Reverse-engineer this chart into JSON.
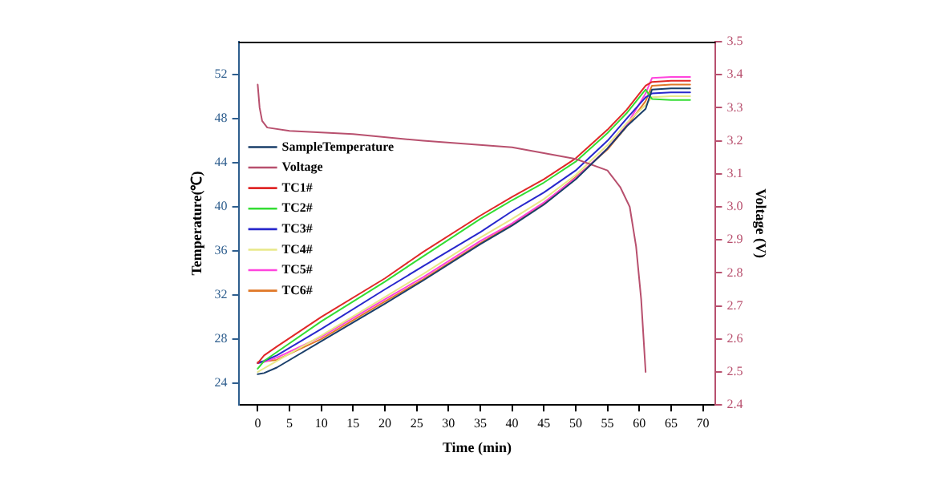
{
  "chart_data": {
    "type": "line",
    "xlabel": "Time (min)",
    "ylabel": "Temperature(℃)",
    "y2label": "Voltage (V)",
    "xlim": [
      -3,
      72
    ],
    "xticks": [
      0,
      5,
      10,
      15,
      20,
      25,
      30,
      35,
      40,
      45,
      50,
      55,
      60,
      65,
      70
    ],
    "ylim": [
      22,
      55
    ],
    "yticks": [
      24,
      28,
      32,
      36,
      40,
      44,
      48,
      52
    ],
    "y2lim": [
      2.4,
      3.5
    ],
    "y2ticks": [
      2.4,
      2.5,
      2.6,
      2.7,
      2.8,
      2.9,
      {
        "value": 3,
        "label": "3.0"
      },
      3.1,
      3.2,
      3.3,
      3.4,
      3.5
    ],
    "grid": false,
    "legend": "left",
    "marker": "none",
    "line_style": "solid",
    "series": [
      {
        "name": "SampleTemperature",
        "color": "#1a3f6a",
        "x": [
          0,
          1,
          3,
          10,
          20,
          26,
          35,
          40,
          45,
          50,
          55,
          58,
          61,
          62,
          65,
          68
        ],
        "values": [
          24.8,
          24.9,
          25.4,
          27.8,
          31.2,
          33.3,
          36.6,
          38.3,
          40.2,
          42.5,
          45.3,
          47.3,
          48.9,
          50.65,
          50.75,
          50.75
        ]
      },
      {
        "name": "Voltage",
        "color": "#b8506e",
        "axis": "y2",
        "x": [
          0,
          0.3,
          0.7,
          1.5,
          5,
          15,
          26,
          40,
          50,
          55,
          57,
          58.5,
          59.5,
          60.3,
          61
        ],
        "values": [
          3.37,
          3.3,
          3.26,
          3.24,
          3.23,
          3.22,
          3.2,
          3.18,
          3.145,
          3.11,
          3.06,
          3.0,
          2.88,
          2.72,
          2.5
        ]
      },
      {
        "name": "TC1#",
        "color": "#e02828",
        "x": [
          0,
          1,
          3,
          10,
          20,
          26,
          35,
          40,
          45,
          50,
          55,
          58,
          61,
          62,
          65,
          68
        ],
        "values": [
          25.8,
          26.5,
          27.3,
          30,
          33.5,
          35.9,
          39.2,
          40.9,
          42.5,
          44.4,
          47,
          48.8,
          51,
          51.35,
          51.45,
          51.45
        ]
      },
      {
        "name": "TC2#",
        "color": "#33dd33",
        "x": [
          0,
          1,
          3,
          10,
          20,
          26,
          35,
          40,
          45,
          50,
          55,
          58,
          61,
          62,
          65,
          68
        ],
        "values": [
          25.3,
          26,
          26.8,
          29.6,
          33.2,
          35.5,
          38.9,
          40.6,
          42.2,
          44.1,
          46.7,
          48.5,
          50.65,
          49.8,
          49.7,
          49.7
        ]
      },
      {
        "name": "TC3#",
        "color": "#2828cc",
        "x": [
          0,
          1,
          3,
          10,
          20,
          26,
          35,
          40,
          45,
          50,
          55,
          58,
          61,
          62,
          65,
          68
        ],
        "values": [
          25.8,
          26,
          26.5,
          28.9,
          32.5,
          34.6,
          37.7,
          39.6,
          41.3,
          43.3,
          46,
          48,
          49.95,
          50.3,
          50.4,
          50.4
        ]
      },
      {
        "name": "TC4#",
        "color": "#e8e888",
        "x": [
          0,
          3,
          10,
          20,
          26,
          35,
          40,
          45,
          50,
          55,
          58,
          61,
          62,
          65,
          68
        ],
        "values": [
          25,
          26,
          28.3,
          31.8,
          33.9,
          37.2,
          38.9,
          40.7,
          42.9,
          45.6,
          47.6,
          49.25,
          49.95,
          50.05,
          50.05
        ]
      },
      {
        "name": "TC5#",
        "color": "#ff44dd",
        "x": [
          0,
          1,
          3,
          10,
          20,
          26,
          35,
          40,
          45,
          50,
          55,
          58,
          61,
          62,
          65,
          68
        ],
        "values": [
          25.8,
          25.9,
          26.3,
          28.2,
          31.6,
          33.6,
          36.9,
          38.5,
          40.4,
          42.6,
          45.3,
          47.4,
          50.3,
          51.7,
          51.8,
          51.8
        ]
      },
      {
        "name": "TC6#",
        "color": "#e07828",
        "x": [
          0,
          3,
          10,
          20,
          26,
          35,
          40,
          45,
          50,
          55,
          58,
          61,
          62,
          65,
          68
        ],
        "values": [
          25.9,
          26.1,
          28,
          31.4,
          33.4,
          36.7,
          38.4,
          40.3,
          42.7,
          45.2,
          47.3,
          49.6,
          51,
          51.1,
          51.1
        ]
      }
    ]
  }
}
